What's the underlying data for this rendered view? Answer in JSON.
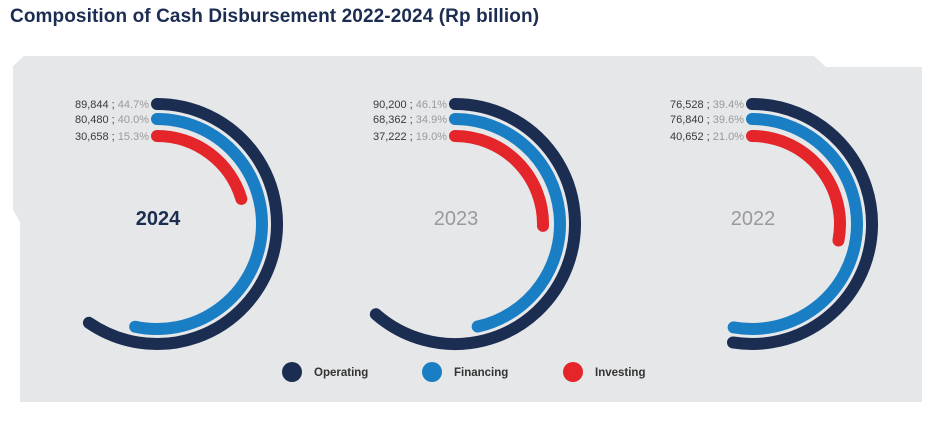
{
  "title": "Composition of Cash Disbursement 2022-2024 (Rp billion)",
  "chart_data": {
    "type": "radial-bar",
    "title": "Composition of Cash Disbursement 2022-2024 (Rp billion)",
    "categories": [
      "Operating",
      "Financing",
      "Investing"
    ],
    "colors": {
      "Operating": "#1c2d52",
      "Financing": "#1a7ec4",
      "Investing": "#e4252a"
    },
    "panel_background": "#e6e7e9",
    "groups": [
      {
        "year": "2024",
        "highlight": true,
        "items": [
          {
            "name": "Operating",
            "value": 89844,
            "value_label": "89,844",
            "sep": ";",
            "percent": 44.7,
            "percent_label": "44.7%"
          },
          {
            "name": "Financing",
            "value": 80480,
            "value_label": "80,480",
            "sep": ";",
            "percent": 40.0,
            "percent_label": "40.0%"
          },
          {
            "name": "Investing",
            "value": 30658,
            "value_label": "30,658",
            "sep": ";",
            "percent": 15.3,
            "percent_label": "15.3%"
          }
        ]
      },
      {
        "year": "2023",
        "highlight": false,
        "items": [
          {
            "name": "Operating",
            "value": 90200,
            "value_label": "90,200",
            "sep": ";",
            "percent": 46.1,
            "percent_label": "46.1%"
          },
          {
            "name": "Financing",
            "value": 68362,
            "value_label": "68,362",
            "sep": ";",
            "percent": 34.9,
            "percent_label": "34.9%"
          },
          {
            "name": "Investing",
            "value": 37222,
            "value_label": "37,222",
            "sep": ";",
            "percent": 19.0,
            "percent_label": "19.0%"
          }
        ]
      },
      {
        "year": "2022",
        "highlight": false,
        "items": [
          {
            "name": "Operating",
            "value": 76528,
            "value_label": "76,528",
            "sep": ";",
            "percent": 39.4,
            "percent_label": "39.4%"
          },
          {
            "name": "Financing",
            "value": 76840,
            "value_label": "76,840",
            "sep": ";",
            "percent": 39.6,
            "percent_label": "39.6%"
          },
          {
            "name": "Investing",
            "value": 40652,
            "value_label": "40,652",
            "sep": ";",
            "percent": 21.0,
            "percent_label": "21.0%"
          }
        ]
      }
    ],
    "legend": [
      "Operating",
      "Financing",
      "Investing"
    ],
    "legend_position": "bottom-center"
  }
}
